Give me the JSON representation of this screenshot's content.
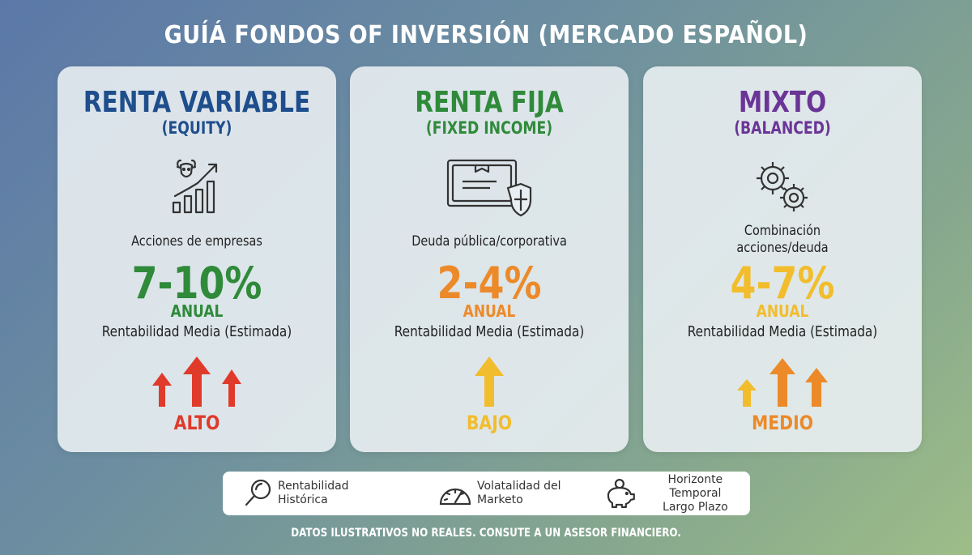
{
  "title": "GUÍÁ FONDOS OF INVERSIÓN (MERCADO ESPAÑOL)",
  "colors": {
    "equity": "#1f4e8c",
    "fixed": "#2f8a3a",
    "mixed": "#6a3596",
    "green": "#2f8a3a",
    "orange": "#ec8a2a",
    "yellow": "#f2bd2c",
    "red": "#e03a2b"
  },
  "cards": [
    {
      "title": "RENTA VARIABLE",
      "subtitle": "(EQUITY)",
      "icon": "bull-chart-icon",
      "description_lines": [
        "Acciones de empresas"
      ],
      "return": "7-10%",
      "annual": "ANUAL",
      "return_label": "Rentabilidad Media (Estimada)",
      "risk": "ALTO"
    },
    {
      "title": "RENTA FIJA",
      "subtitle": "(FIXED INCOME)",
      "icon": "bond-certificate-icon",
      "description_lines": [
        "Deuda pública/corporativa"
      ],
      "return": "2-4%",
      "annual": "ANUAL",
      "return_label": "Rentabilidad Media (Estimada)",
      "risk": "BAJO"
    },
    {
      "title": "MIXTO",
      "subtitle": "(BALANCED)",
      "icon": "gears-icon",
      "description_lines": [
        "Combinación",
        "acciones/deuda"
      ],
      "return": "4-7%",
      "annual": "ANUAL",
      "return_label": "Rentabilidad Media (Estimada)",
      "risk": "MEDIO"
    }
  ],
  "legend": [
    {
      "icon": "magnifier-icon",
      "lines": [
        "Rentabilidad",
        "Histórica"
      ]
    },
    {
      "icon": "gauge-icon",
      "lines": [
        "Volatalidad del",
        "Marketo"
      ]
    },
    {
      "icon": "piggy-bank-icon",
      "lines": [
        "Horizonte Temporal",
        "Largo Plazo"
      ]
    }
  ],
  "footer": "DATOS ILUSTRATIVOS NO REALES. CONSUTE A UN ASESOR FINANCIERO."
}
